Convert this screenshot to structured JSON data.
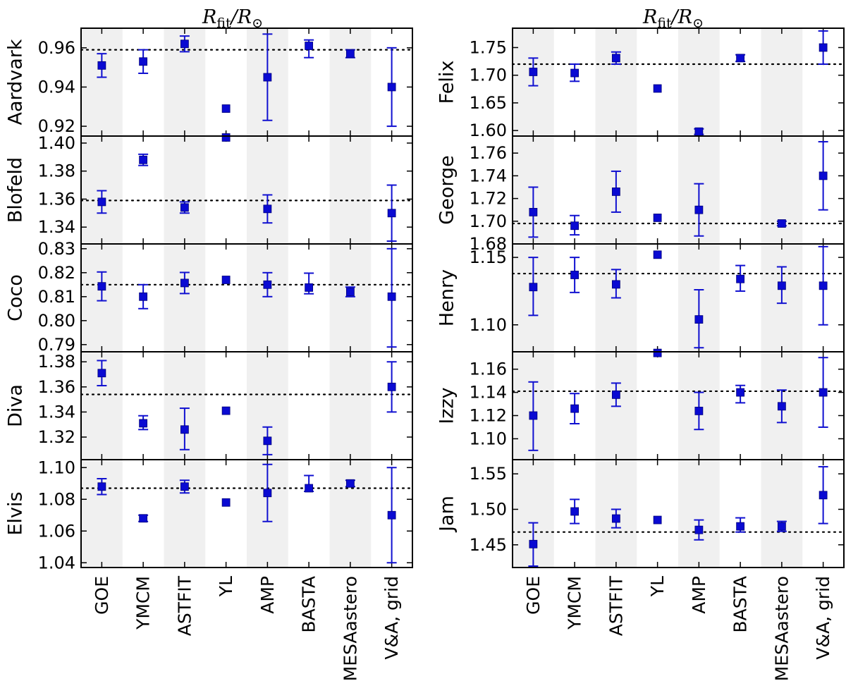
{
  "figure": {
    "column_titles": [
      {
        "main": "R",
        "sub": "fit",
        "slash": "/",
        "main2": "R",
        "sub2": "⊙"
      },
      {
        "main": "R",
        "sub": "fit",
        "slash": "/",
        "main2": "R",
        "sub2": "⊙"
      }
    ]
  },
  "colors": {
    "marker": "#0a0ad2",
    "error_bar": "#1010d0",
    "shade": "#f0f0f0",
    "axis": "#000000",
    "reference_line": "#000000"
  },
  "chart_data": [
    {
      "type": "scatter",
      "column": 0,
      "row": 0,
      "title": "Aardvark",
      "categories": [
        "GOE",
        "YMCM",
        "ASTFIT",
        "YL",
        "AMP",
        "BASTA",
        "MESAastero",
        "V&A, grid"
      ],
      "ylim": [
        0.915,
        0.97
      ],
      "yticks": [
        0.92,
        0.94,
        0.96
      ],
      "ytick_labels": [
        "0.92",
        "0.94",
        "0.96"
      ],
      "reference": 0.959,
      "points": [
        {
          "y": 0.951,
          "lo": 0.945,
          "hi": 0.957
        },
        {
          "y": 0.953,
          "lo": 0.947,
          "hi": 0.959
        },
        {
          "y": 0.962,
          "lo": 0.958,
          "hi": 0.966
        },
        {
          "y": 0.929,
          "lo": null,
          "hi": null
        },
        {
          "y": 0.945,
          "lo": 0.923,
          "hi": 0.967
        },
        {
          "y": 0.961,
          "lo": 0.955,
          "hi": 0.964
        },
        {
          "y": 0.957,
          "lo": 0.955,
          "hi": 0.959
        },
        {
          "y": 0.94,
          "lo": 0.92,
          "hi": 0.96
        }
      ]
    },
    {
      "type": "scatter",
      "column": 0,
      "row": 1,
      "title": "Blofeld",
      "categories": [
        "GOE",
        "YMCM",
        "ASTFIT",
        "YL",
        "AMP",
        "BASTA",
        "MESAastero",
        "V&A, grid"
      ],
      "ylim": [
        1.328,
        1.405
      ],
      "yticks": [
        1.34,
        1.36,
        1.38,
        1.4
      ],
      "ytick_labels": [
        "1.34",
        "1.36",
        "1.38",
        "1.40"
      ],
      "reference": 1.359,
      "points": [
        {
          "y": 1.358,
          "lo": 1.35,
          "hi": 1.366
        },
        {
          "y": 1.388,
          "lo": 1.384,
          "hi": 1.392
        },
        {
          "y": 1.354,
          "lo": 1.35,
          "hi": 1.358
        },
        {
          "y": 1.404,
          "lo": null,
          "hi": null
        },
        {
          "y": 1.353,
          "lo": 1.343,
          "hi": 1.363
        },
        {
          "y": null,
          "lo": null,
          "hi": null
        },
        {
          "y": null,
          "lo": null,
          "hi": null
        },
        {
          "y": 1.35,
          "lo": 1.33,
          "hi": 1.37
        }
      ]
    },
    {
      "type": "scatter",
      "column": 0,
      "row": 2,
      "title": "Coco",
      "categories": [
        "GOE",
        "YMCM",
        "ASTFIT",
        "YL",
        "AMP",
        "BASTA",
        "MESAastero",
        "V&A, grid"
      ],
      "ylim": [
        0.787,
        0.832
      ],
      "yticks": [
        0.79,
        0.8,
        0.81,
        0.82,
        0.83
      ],
      "ytick_labels": [
        "0.79",
        "0.80",
        "0.81",
        "0.82",
        "0.83"
      ],
      "reference": 0.815,
      "points": [
        {
          "y": 0.8143,
          "lo": 0.8083,
          "hi": 0.8203
        },
        {
          "y": 0.81,
          "lo": 0.805,
          "hi": 0.815
        },
        {
          "y": 0.8157,
          "lo": 0.8113,
          "hi": 0.8201
        },
        {
          "y": 0.817,
          "lo": null,
          "hi": null
        },
        {
          "y": 0.815,
          "lo": 0.81,
          "hi": 0.82
        },
        {
          "y": 0.8138,
          "lo": 0.8112,
          "hi": 0.8198
        },
        {
          "y": 0.812,
          "lo": 0.81,
          "hi": 0.814
        },
        {
          "y": 0.81,
          "lo": 0.789,
          "hi": 0.83
        }
      ]
    },
    {
      "type": "scatter",
      "column": 0,
      "row": 3,
      "title": "Diva",
      "categories": [
        "GOE",
        "YMCM",
        "ASTFIT",
        "YL",
        "AMP",
        "BASTA",
        "MESAastero",
        "V&A, grid"
      ],
      "ylim": [
        1.302,
        1.388
      ],
      "yticks": [
        1.32,
        1.34,
        1.36,
        1.38
      ],
      "ytick_labels": [
        "1.32",
        "1.34",
        "1.36",
        "1.38"
      ],
      "reference": 1.354,
      "points": [
        {
          "y": 1.371,
          "lo": 1.361,
          "hi": 1.381
        },
        {
          "y": 1.331,
          "lo": 1.326,
          "hi": 1.337
        },
        {
          "y": 1.326,
          "lo": 1.31,
          "hi": 1.343
        },
        {
          "y": 1.341,
          "lo": null,
          "hi": null
        },
        {
          "y": 1.317,
          "lo": 1.306,
          "hi": 1.328
        },
        {
          "y": null,
          "lo": null,
          "hi": null
        },
        {
          "y": null,
          "lo": null,
          "hi": null
        },
        {
          "y": 1.36,
          "lo": 1.34,
          "hi": 1.38
        }
      ]
    },
    {
      "type": "scatter",
      "column": 0,
      "row": 4,
      "title": "Elvis",
      "categories": [
        "GOE",
        "YMCM",
        "ASTFIT",
        "YL",
        "AMP",
        "BASTA",
        "MESAastero",
        "V&A, grid"
      ],
      "ylim": [
        1.037,
        1.105
      ],
      "yticks": [
        1.04,
        1.06,
        1.08,
        1.1
      ],
      "ytick_labels": [
        "1.04",
        "1.06",
        "1.08",
        "1.10"
      ],
      "reference": 1.087,
      "points": [
        {
          "y": 1.088,
          "lo": 1.083,
          "hi": 1.093
        },
        {
          "y": 1.068,
          "lo": 1.066,
          "hi": 1.07
        },
        {
          "y": 1.088,
          "lo": 1.084,
          "hi": 1.092
        },
        {
          "y": 1.078,
          "lo": null,
          "hi": null
        },
        {
          "y": 1.084,
          "lo": 1.066,
          "hi": 1.102
        },
        {
          "y": 1.087,
          "lo": 1.085,
          "hi": 1.095
        },
        {
          "y": 1.09,
          "lo": 1.088,
          "hi": 1.092
        },
        {
          "y": 1.07,
          "lo": 1.04,
          "hi": 1.1
        }
      ]
    },
    {
      "type": "scatter",
      "column": 1,
      "row": 0,
      "title": "Felix",
      "categories": [
        "GOE",
        "YMCM",
        "ASTFIT",
        "YL",
        "AMP",
        "BASTA",
        "MESAastero",
        "V&A, grid"
      ],
      "ylim": [
        1.59,
        1.785
      ],
      "yticks": [
        1.6,
        1.65,
        1.7,
        1.75
      ],
      "ytick_labels": [
        "1.60",
        "1.65",
        "1.70",
        "1.75"
      ],
      "reference": 1.72,
      "points": [
        {
          "y": 1.706,
          "lo": 1.681,
          "hi": 1.731
        },
        {
          "y": 1.704,
          "lo": 1.689,
          "hi": 1.72
        },
        {
          "y": 1.731,
          "lo": 1.72,
          "hi": 1.742
        },
        {
          "y": 1.676,
          "lo": null,
          "hi": null
        },
        {
          "y": 1.598,
          "lo": 1.593,
          "hi": 1.603
        },
        {
          "y": 1.731,
          "lo": 1.725,
          "hi": 1.737
        },
        {
          "y": null,
          "lo": null,
          "hi": null
        },
        {
          "y": 1.75,
          "lo": 1.72,
          "hi": 1.78
        }
      ]
    },
    {
      "type": "scatter",
      "column": 1,
      "row": 1,
      "title": "George",
      "categories": [
        "GOE",
        "YMCM",
        "ASTFIT",
        "YL",
        "AMP",
        "BASTA",
        "MESAastero",
        "V&A, grid"
      ],
      "ylim": [
        1.68,
        1.775
      ],
      "yticks": [
        1.68,
        1.7,
        1.72,
        1.74,
        1.76
      ],
      "ytick_labels": [
        "1.68",
        "1.70",
        "1.72",
        "1.74",
        "1.76"
      ],
      "reference": 1.698,
      "points": [
        {
          "y": 1.708,
          "lo": 1.686,
          "hi": 1.73
        },
        {
          "y": 1.696,
          "lo": 1.688,
          "hi": 1.705
        },
        {
          "y": 1.726,
          "lo": 1.708,
          "hi": 1.744
        },
        {
          "y": 1.703,
          "lo": null,
          "hi": null
        },
        {
          "y": 1.71,
          "lo": 1.687,
          "hi": 1.733
        },
        {
          "y": null,
          "lo": null,
          "hi": null
        },
        {
          "y": 1.698,
          "lo": 1.696,
          "hi": 1.7
        },
        {
          "y": 1.74,
          "lo": 1.71,
          "hi": 1.77
        }
      ]
    },
    {
      "type": "scatter",
      "column": 1,
      "row": 2,
      "title": "Henry",
      "categories": [
        "GOE",
        "YMCM",
        "ASTFIT",
        "YL",
        "AMP",
        "BASTA",
        "MESAastero",
        "V&A, grid"
      ],
      "ylim": [
        1.08,
        1.16
      ],
      "yticks": [
        1.1,
        1.15
      ],
      "ytick_labels": [
        "1.10",
        "1.15"
      ],
      "reference": 1.138,
      "points": [
        {
          "y": 1.128,
          "lo": 1.107,
          "hi": 1.15
        },
        {
          "y": 1.137,
          "lo": 1.124,
          "hi": 1.15
        },
        {
          "y": 1.13,
          "lo": 1.12,
          "hi": 1.141
        },
        {
          "y": 1.152,
          "lo": null,
          "hi": null
        },
        {
          "y": 1.104,
          "lo": 1.083,
          "hi": 1.126
        },
        {
          "y": 1.134,
          "lo": 1.125,
          "hi": 1.144
        },
        {
          "y": 1.129,
          "lo": 1.116,
          "hi": 1.143
        },
        {
          "y": 1.129,
          "lo": 1.1,
          "hi": 1.158
        }
      ]
    },
    {
      "type": "scatter",
      "column": 1,
      "row": 3,
      "title": "Izzy",
      "categories": [
        "GOE",
        "YMCM",
        "ASTFIT",
        "YL",
        "AMP",
        "BASTA",
        "MESAastero",
        "V&A, grid"
      ],
      "ylim": [
        1.082,
        1.175
      ],
      "yticks": [
        1.1,
        1.12,
        1.14,
        1.16
      ],
      "ytick_labels": [
        "1.10",
        "1.12",
        "1.14",
        "1.16"
      ],
      "reference": 1.141,
      "points": [
        {
          "y": 1.12,
          "lo": 1.09,
          "hi": 1.149
        },
        {
          "y": 1.126,
          "lo": 1.113,
          "hi": 1.139
        },
        {
          "y": 1.138,
          "lo": 1.128,
          "hi": 1.148
        },
        {
          "y": 1.174,
          "lo": null,
          "hi": null
        },
        {
          "y": 1.124,
          "lo": 1.108,
          "hi": 1.14
        },
        {
          "y": 1.14,
          "lo": 1.131,
          "hi": 1.146
        },
        {
          "y": 1.128,
          "lo": 1.114,
          "hi": 1.142
        },
        {
          "y": 1.14,
          "lo": 1.11,
          "hi": 1.17
        }
      ]
    },
    {
      "type": "scatter",
      "column": 1,
      "row": 4,
      "title": "Jam",
      "categories": [
        "GOE",
        "YMCM",
        "ASTFIT",
        "YL",
        "AMP",
        "BASTA",
        "MESAastero",
        "V&A, grid"
      ],
      "ylim": [
        1.418,
        1.57
      ],
      "yticks": [
        1.45,
        1.5,
        1.55
      ],
      "ytick_labels": [
        "1.45",
        "1.50",
        "1.55"
      ],
      "reference": 1.468,
      "points": [
        {
          "y": 1.451,
          "lo": 1.42,
          "hi": 1.481
        },
        {
          "y": 1.497,
          "lo": 1.48,
          "hi": 1.514
        },
        {
          "y": 1.487,
          "lo": 1.474,
          "hi": 1.5
        },
        {
          "y": 1.485,
          "lo": null,
          "hi": null
        },
        {
          "y": 1.471,
          "lo": 1.457,
          "hi": 1.485
        },
        {
          "y": 1.476,
          "lo": 1.468,
          "hi": 1.488
        },
        {
          "y": 1.476,
          "lo": 1.469,
          "hi": 1.483
        },
        {
          "y": 1.52,
          "lo": 1.48,
          "hi": 1.56
        }
      ]
    }
  ]
}
